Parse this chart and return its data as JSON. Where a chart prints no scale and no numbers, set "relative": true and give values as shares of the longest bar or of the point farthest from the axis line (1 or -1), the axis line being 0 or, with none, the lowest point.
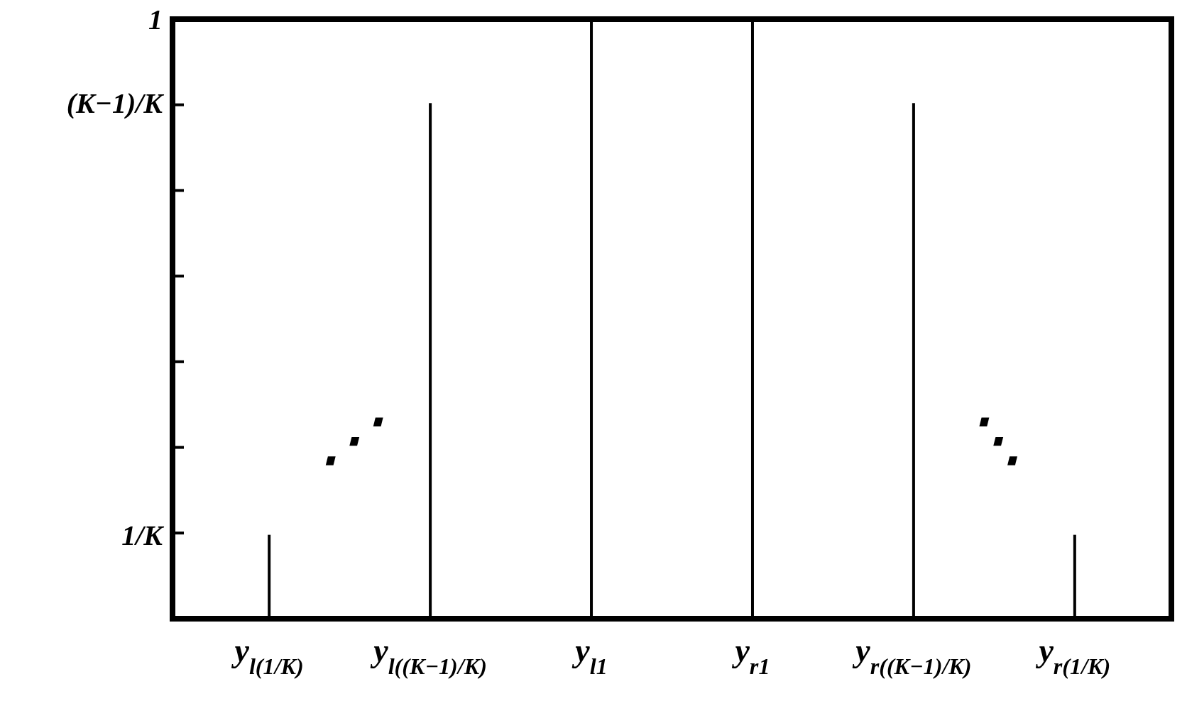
{
  "chart_data": {
    "type": "bar",
    "relative": true,
    "categories": [
      "y$_{l(1/K)}$",
      "y$_{l((K−1)/K)}$",
      "y$_{l1}$",
      "y$_{r1}$",
      "y$_{r((K−1)/K)}$",
      "y$_{r(1/K)}$"
    ],
    "values": [
      0.14,
      0.86,
      1,
      1,
      0.86,
      0.14
    ],
    "color": "#000000",
    "annotations": [
      "1/K",
      "(K−1)/K",
      "1",
      "⋰",
      "⋱"
    ]
  }
}
